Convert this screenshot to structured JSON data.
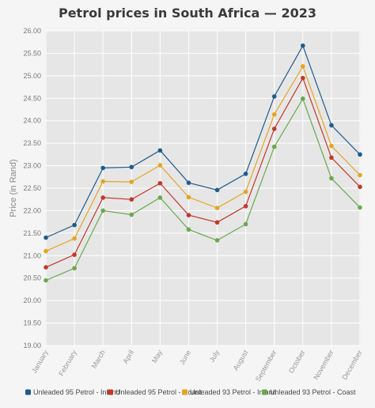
{
  "chart_data": {
    "type": "line",
    "title": "Petrol prices in South Africa — 2023",
    "xlabel": "",
    "ylabel": "Price (in Rand)",
    "ylim": [
      19.0,
      26.0
    ],
    "yticks": [
      "19.00",
      "19.50",
      "20.00",
      "20.50",
      "21.00",
      "21.50",
      "22.00",
      "22.50",
      "23.00",
      "23.50",
      "24.00",
      "24.50",
      "25.00",
      "25.50",
      "26.00"
    ],
    "categories": [
      "January",
      "February",
      "March",
      "April",
      "May",
      "June",
      "July",
      "August",
      "September",
      "October",
      "November",
      "December"
    ],
    "grid": true,
    "legend_position": "bottom",
    "series": [
      {
        "name": "Unleaded 95 Petrol - Inland",
        "color": "#1f5c8b",
        "values": [
          21.4,
          21.68,
          22.95,
          22.97,
          23.34,
          22.62,
          22.46,
          22.82,
          24.54,
          25.67,
          23.9,
          23.25
        ]
      },
      {
        "name": "Unleaded 95 Petrol - Coast",
        "color": "#c0392b",
        "values": [
          20.74,
          21.02,
          22.29,
          22.25,
          22.61,
          21.9,
          21.74,
          22.1,
          23.82,
          24.95,
          23.18,
          22.53
        ]
      },
      {
        "name": "Unleaded 93 Petrol - Inland",
        "color": "#e3a521",
        "values": [
          21.1,
          21.38,
          22.65,
          22.64,
          23.01,
          22.3,
          22.06,
          22.42,
          24.14,
          25.21,
          23.44,
          22.79
        ]
      },
      {
        "name": "Unleaded 93 Petrol - Coast",
        "color": "#6aa84f",
        "values": [
          20.45,
          20.72,
          22.0,
          21.91,
          22.29,
          21.58,
          21.34,
          21.7,
          23.42,
          24.49,
          22.72,
          22.07
        ]
      }
    ]
  }
}
